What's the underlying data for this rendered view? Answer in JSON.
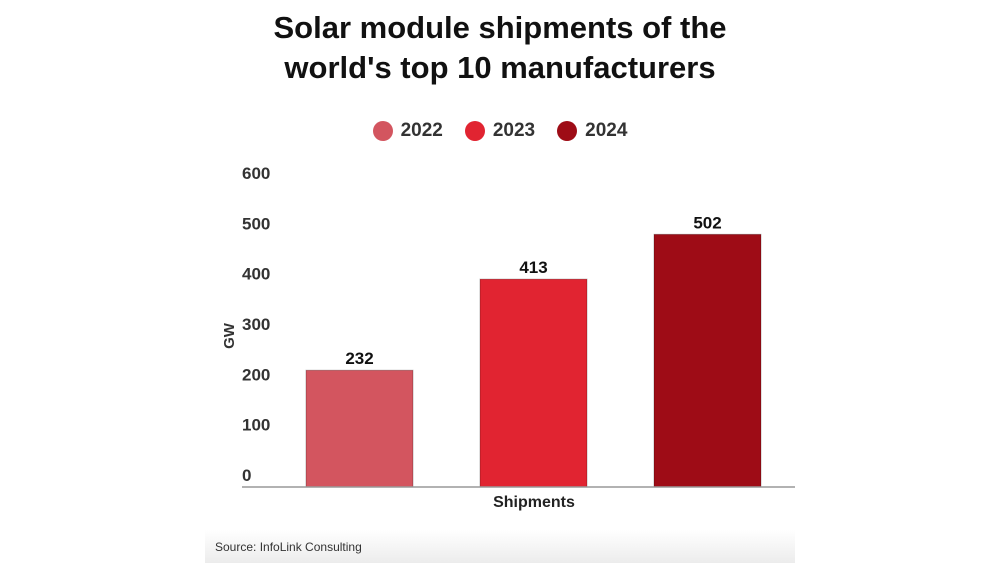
{
  "chart_data": {
    "type": "bar",
    "title_lines": [
      "Solar module shipments of the",
      "world's top 10 manufacturers"
    ],
    "categories": [
      "Shipments"
    ],
    "xlabel": "Shipments",
    "ylabel": "GW",
    "ylim": [
      0,
      600
    ],
    "yticks": [
      0,
      100,
      200,
      300,
      400,
      500,
      600
    ],
    "grid": false,
    "legend_position": "top",
    "series": [
      {
        "name": "2022",
        "values": [
          232
        ],
        "color": "#d3555f"
      },
      {
        "name": "2023",
        "values": [
          413
        ],
        "color": "#e12431"
      },
      {
        "name": "2024",
        "values": [
          502
        ],
        "color": "#9e0c16"
      }
    ]
  },
  "source": "Source: InfoLink Consulting"
}
